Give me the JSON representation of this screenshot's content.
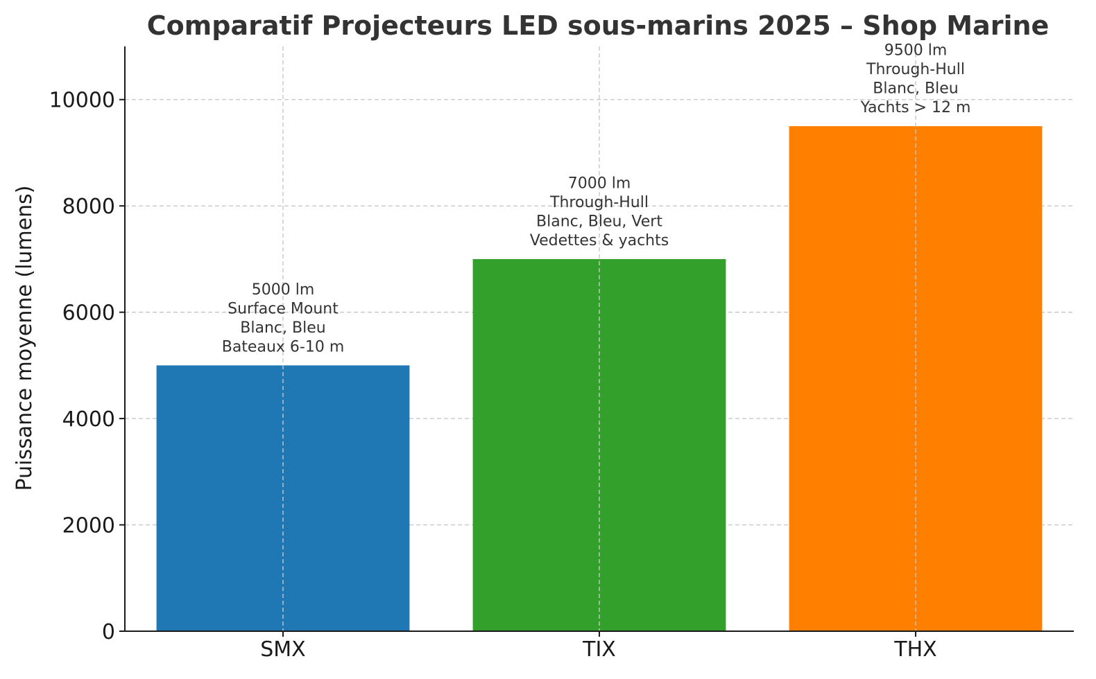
{
  "chart_data": {
    "type": "bar",
    "title": "Comparatif Projecteurs LED sous-marins 2025 – Shop Marine",
    "xlabel": "",
    "ylabel": "Puissance moyenne (lumens)",
    "categories": [
      "SMX",
      "TIX",
      "THX"
    ],
    "values": [
      5000,
      7000,
      9500
    ],
    "colors": [
      "#1f77b4",
      "#33a02c",
      "#ff7f00"
    ],
    "ylim": [
      0,
      11000
    ],
    "yticks": [
      0,
      2000,
      4000,
      6000,
      8000,
      10000
    ],
    "grid": true,
    "annotations": [
      [
        "5000 lm",
        "Surface Mount",
        "Blanc, Bleu",
        "Bateaux 6-10 m"
      ],
      [
        "7000 lm",
        "Through-Hull",
        "Blanc, Bleu, Vert",
        "Vedettes & yachts"
      ],
      [
        "9500 lm",
        "Through-Hull",
        "Blanc, Bleu",
        "Yachts > 12 m"
      ]
    ]
  }
}
